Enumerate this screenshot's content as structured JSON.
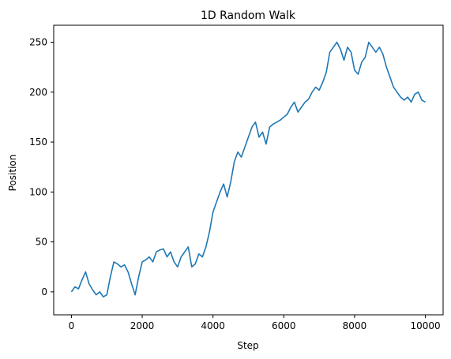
{
  "chart_data": {
    "type": "line",
    "title": "1D Random Walk",
    "xlabel": "Step",
    "ylabel": "Position",
    "xlim": [
      -500,
      10500
    ],
    "ylim": [
      -23,
      267
    ],
    "xticks": [
      0,
      2000,
      4000,
      6000,
      8000,
      10000
    ],
    "yticks": [
      0,
      50,
      100,
      150,
      200,
      250
    ],
    "grid": false,
    "series": [
      {
        "color": "#1f77b4",
        "x": [
          0,
          100,
          200,
          300,
          400,
          500,
          600,
          700,
          800,
          900,
          1000,
          1100,
          1200,
          1300,
          1400,
          1500,
          1600,
          1700,
          1800,
          1900,
          2000,
          2100,
          2200,
          2300,
          2400,
          2500,
          2600,
          2700,
          2800,
          2900,
          3000,
          3100,
          3200,
          3300,
          3400,
          3500,
          3600,
          3700,
          3800,
          3900,
          4000,
          4100,
          4200,
          4300,
          4400,
          4500,
          4600,
          4700,
          4800,
          4900,
          5000,
          5100,
          5200,
          5300,
          5400,
          5500,
          5600,
          5700,
          5800,
          5900,
          6000,
          6100,
          6200,
          6300,
          6400,
          6500,
          6600,
          6700,
          6800,
          6900,
          7000,
          7100,
          7200,
          7300,
          7400,
          7500,
          7600,
          7700,
          7800,
          7900,
          8000,
          8100,
          8200,
          8300,
          8400,
          8500,
          8600,
          8700,
          8800,
          8900,
          9000,
          9100,
          9200,
          9300,
          9400,
          9500,
          9600,
          9700,
          9800,
          9900,
          10000
        ],
        "y": [
          0,
          5,
          3,
          12,
          20,
          8,
          2,
          -3,
          0,
          -5,
          -3,
          15,
          30,
          28,
          25,
          27,
          20,
          8,
          -3,
          15,
          30,
          32,
          35,
          30,
          40,
          42,
          43,
          35,
          40,
          30,
          25,
          35,
          40,
          45,
          25,
          28,
          38,
          35,
          45,
          60,
          80,
          90,
          100,
          108,
          95,
          110,
          130,
          140,
          135,
          145,
          155,
          165,
          170,
          155,
          160,
          148,
          165,
          168,
          170,
          172,
          175,
          178,
          185,
          190,
          180,
          185,
          190,
          193,
          200,
          205,
          202,
          210,
          220,
          240,
          245,
          250,
          243,
          232,
          245,
          240,
          222,
          218,
          230,
          235,
          250,
          245,
          240,
          245,
          238,
          225,
          215,
          205,
          200,
          195,
          192,
          195,
          190,
          198,
          200,
          192,
          190
        ]
      }
    ]
  }
}
